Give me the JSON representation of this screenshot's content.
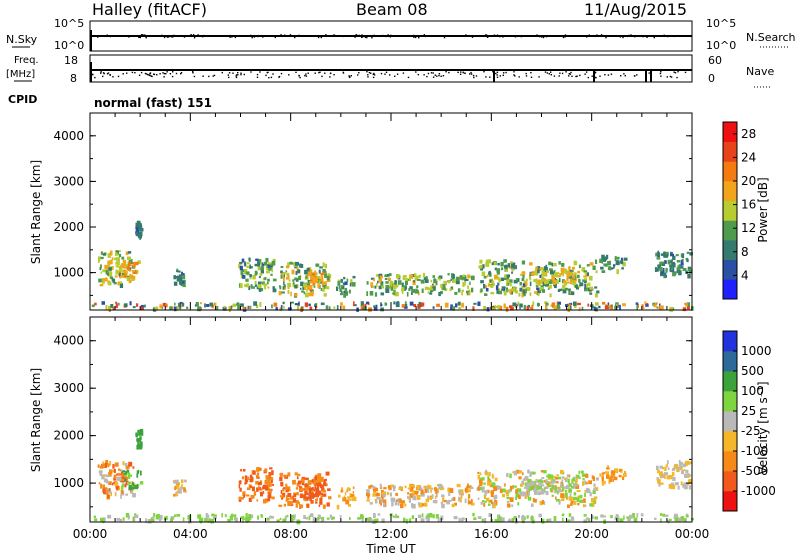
{
  "header": {
    "title": "Halley (fitACF)",
    "beam": "Beam 08",
    "date": "11/Aug/2015"
  },
  "top_panels": {
    "nsky_label": "N.Sky",
    "nsearch_label": "N.Search",
    "noise_ticks": [
      "10^5",
      "10^0"
    ],
    "freq_label": "Freq.",
    "freq_unit": "[MHz]",
    "freq_ticks": [
      "18",
      "8"
    ],
    "nave_label": "Nave",
    "nave_ticks": [
      "60",
      "0"
    ],
    "cpid_label": "CPID",
    "cpid_text": "normal (fast) 151"
  },
  "colors": {
    "power_scale": [
      "#1f1fff",
      "#2c4fa6",
      "#357a6e",
      "#4e9b4e",
      "#b7cc2e",
      "#f2a51a",
      "#f57a10",
      "#e8421a",
      "#ee1111"
    ],
    "velocity_scale": [
      "#ee1111",
      "#f15a1a",
      "#f58a18",
      "#f5b72a",
      "#b9b9b9",
      "#7fd53e",
      "#3ca23c",
      "#2b6a9a",
      "#2233dd"
    ]
  },
  "chart_data": [
    {
      "type": "heatmap",
      "title": "Power",
      "ylabel": "Slant Range [km]",
      "xlabel": "",
      "ylim": [
        180,
        4500
      ],
      "xlim": [
        0,
        24
      ],
      "y_ticks": [
        "1000",
        "2000",
        "3000",
        "4000"
      ],
      "colorbar_label": "Power [dB]",
      "colorbar_ticks": [
        "4",
        "8",
        "12",
        "16",
        "20",
        "24",
        "28"
      ],
      "colorbar_range": [
        0,
        30
      ],
      "patches": [
        {
          "t0": 0.0,
          "t1": 24.0,
          "r0": 190,
          "r1": 330,
          "v0": 4,
          "v1": 26
        },
        {
          "t0": 0.3,
          "t1": 1.7,
          "r0": 700,
          "r1": 1450,
          "v0": 8,
          "v1": 20
        },
        {
          "t0": 1.2,
          "t1": 2.0,
          "r0": 850,
          "r1": 1250,
          "v0": 12,
          "v1": 22
        },
        {
          "t0": 1.8,
          "t1": 2.0,
          "r0": 1750,
          "r1": 2100,
          "v0": 6,
          "v1": 10
        },
        {
          "t0": 3.3,
          "t1": 3.8,
          "r0": 700,
          "r1": 1050,
          "v0": 6,
          "v1": 12
        },
        {
          "t0": 5.9,
          "t1": 7.3,
          "r0": 600,
          "r1": 1300,
          "v0": 6,
          "v1": 16
        },
        {
          "t0": 7.5,
          "t1": 9.5,
          "r0": 500,
          "r1": 1200,
          "v0": 8,
          "v1": 20
        },
        {
          "t0": 8.6,
          "t1": 9.2,
          "r0": 650,
          "r1": 1000,
          "v0": 16,
          "v1": 22
        },
        {
          "t0": 9.8,
          "t1": 10.5,
          "r0": 500,
          "r1": 900,
          "v0": 6,
          "v1": 14
        },
        {
          "t0": 11.0,
          "t1": 15.2,
          "r0": 520,
          "r1": 950,
          "v0": 8,
          "v1": 18
        },
        {
          "t0": 15.4,
          "t1": 20.2,
          "r0": 500,
          "r1": 1250,
          "v0": 6,
          "v1": 18
        },
        {
          "t0": 17.2,
          "t1": 19.3,
          "r0": 750,
          "r1": 1100,
          "v0": 12,
          "v1": 20
        },
        {
          "t0": 20.3,
          "t1": 21.3,
          "r0": 1000,
          "r1": 1350,
          "v0": 6,
          "v1": 14
        },
        {
          "t0": 22.5,
          "t1": 23.9,
          "r0": 900,
          "r1": 1450,
          "v0": 6,
          "v1": 12
        }
      ]
    },
    {
      "type": "heatmap",
      "title": "Velocity",
      "ylabel": "Slant Range [km]",
      "xlabel": "Time UT",
      "ylim": [
        180,
        4500
      ],
      "xlim": [
        0,
        24
      ],
      "x_ticks": [
        "00:00",
        "04:00",
        "08:00",
        "12:00",
        "16:00",
        "20:00",
        "00:00"
      ],
      "y_ticks": [
        "1000",
        "2000",
        "3000",
        "4000"
      ],
      "colorbar_label": "Velocity [m s⁻¹]",
      "colorbar_ticks": [
        "-1000",
        "-500",
        "-100",
        "-25",
        "25",
        "100",
        "500",
        "1000"
      ],
      "patches": [
        {
          "t0": 0.0,
          "t1": 24.0,
          "r0": 190,
          "r1": 330,
          "v0": 4,
          "v1": 6
        },
        {
          "t0": 0.3,
          "t1": 1.7,
          "r0": 700,
          "r1": 1450,
          "v0": 1,
          "v1": 5
        },
        {
          "t0": 1.2,
          "t1": 2.0,
          "r0": 850,
          "r1": 1250,
          "v0": 5,
          "v1": 7
        },
        {
          "t0": 1.8,
          "t1": 2.0,
          "r0": 1750,
          "r1": 2100,
          "v0": 6,
          "v1": 7
        },
        {
          "t0": 3.3,
          "t1": 3.8,
          "r0": 700,
          "r1": 1050,
          "v0": 2,
          "v1": 5
        },
        {
          "t0": 5.9,
          "t1": 7.3,
          "r0": 600,
          "r1": 1300,
          "v0": 1,
          "v1": 3
        },
        {
          "t0": 7.5,
          "t1": 9.5,
          "r0": 500,
          "r1": 1200,
          "v0": 1,
          "v1": 3
        },
        {
          "t0": 8.6,
          "t1": 9.2,
          "r0": 650,
          "r1": 1000,
          "v0": 1,
          "v1": 2
        },
        {
          "t0": 9.8,
          "t1": 10.5,
          "r0": 500,
          "r1": 900,
          "v0": 2,
          "v1": 4
        },
        {
          "t0": 11.0,
          "t1": 15.2,
          "r0": 520,
          "r1": 950,
          "v0": 2,
          "v1": 5
        },
        {
          "t0": 15.4,
          "t1": 20.2,
          "r0": 500,
          "r1": 1250,
          "v0": 2,
          "v1": 6
        },
        {
          "t0": 17.2,
          "t1": 19.3,
          "r0": 750,
          "r1": 1100,
          "v0": 4,
          "v1": 6
        },
        {
          "t0": 20.3,
          "t1": 21.3,
          "r0": 1000,
          "r1": 1350,
          "v0": 2,
          "v1": 4
        },
        {
          "t0": 22.5,
          "t1": 23.9,
          "r0": 900,
          "r1": 1450,
          "v0": 3,
          "v1": 5
        }
      ]
    }
  ]
}
